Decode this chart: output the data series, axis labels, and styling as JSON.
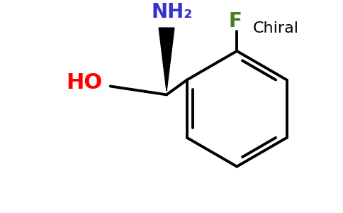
{
  "background": "#ffffff",
  "bond_color": "#000000",
  "ho_color": "#ff0000",
  "nh2_color": "#3333cc",
  "f_color": "#4a7c20",
  "chiral_color": "#000000",
  "chiral_label": "Chiral",
  "f_label": "F",
  "nh2_label": "NH₂",
  "ho_label": "HO",
  "line_width": 2.8,
  "ring_orient_deg": 0
}
